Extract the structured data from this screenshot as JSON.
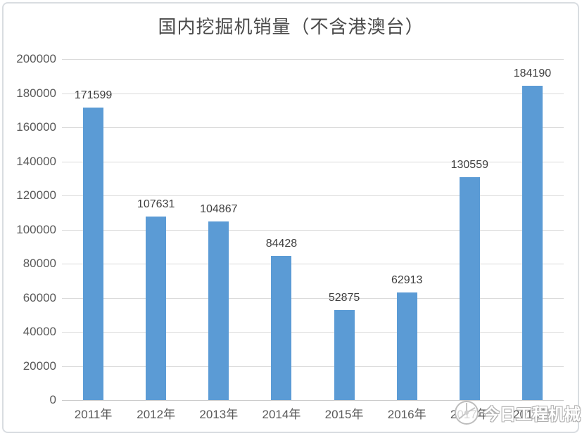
{
  "chart_data": {
    "type": "bar",
    "title": "国内挖掘机销量（不含港澳台）",
    "categories": [
      "2011年",
      "2012年",
      "2013年",
      "2014年",
      "2015年",
      "2016年",
      "2017年",
      "2018年"
    ],
    "values": [
      171599,
      107631,
      104867,
      84428,
      52875,
      62913,
      130559,
      184190
    ],
    "data_labels": [
      "171599",
      "107631",
      "104867",
      "84428",
      "52875",
      "62913",
      "130559",
      "184190"
    ],
    "xlabel": "",
    "ylabel": "",
    "ylim": [
      0,
      200000
    ],
    "ytick_step": 20000,
    "ytick_labels": [
      "0",
      "20000",
      "40000",
      "60000",
      "80000",
      "100000",
      "120000",
      "140000",
      "160000",
      "180000",
      "200000"
    ],
    "grid": true,
    "legend_position": "none",
    "bar_color": "#5b9bd5",
    "gridline_color": "#dadada",
    "axis_label_color": "#595959",
    "data_label_color": "#3f3f3f",
    "title_color": "#4a4a4a"
  },
  "watermark": {
    "logo_icon": "circle-badge-logo",
    "text": "今日工程机械"
  }
}
